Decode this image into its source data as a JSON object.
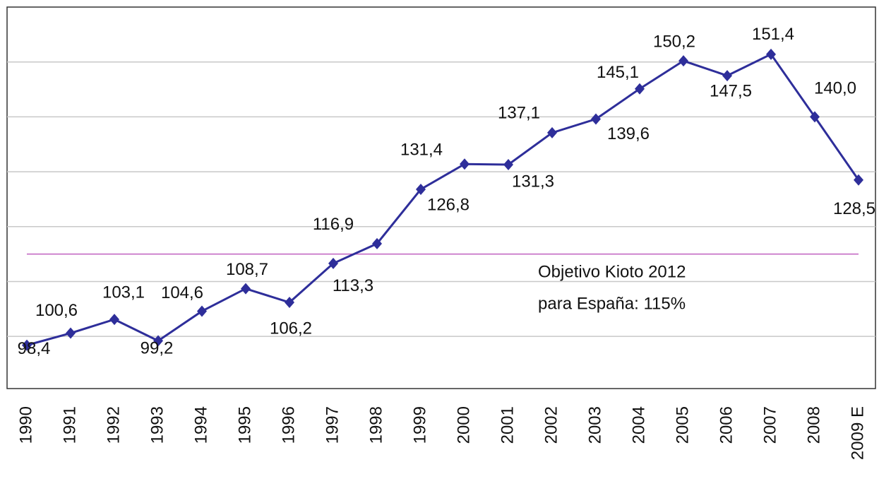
{
  "chart_data": {
    "type": "line",
    "categories": [
      "1990",
      "1991",
      "1992",
      "1993",
      "1994",
      "1995",
      "1996",
      "1997",
      "1998",
      "1999",
      "2000",
      "2001",
      "2002",
      "2003",
      "2004",
      "2005",
      "2006",
      "2007",
      "2008",
      "2009 E"
    ],
    "series": [
      {
        "color": "#2e2e9a",
        "values": [
          98.4,
          100.6,
          103.1,
          99.2,
          104.6,
          108.7,
          106.2,
          113.3,
          116.9,
          126.8,
          131.4,
          131.3,
          137.1,
          139.6,
          145.1,
          150.2,
          147.5,
          151.4,
          140.0,
          128.5
        ],
        "value_labels": [
          "98,4",
          "100,6",
          "103,1",
          "99,2",
          "104,6",
          "108,7",
          "106,2",
          "113,3",
          "116,9",
          "126,8",
          "131,4",
          "131,3",
          "137,1",
          "139,6",
          "145,1",
          "150,2",
          "147,5",
          "151,4",
          "140,0",
          "128,5"
        ]
      }
    ],
    "ylim": [
      90.5,
      160
    ],
    "yticks": [
      100,
      110,
      120,
      130,
      140,
      150
    ],
    "grid": true,
    "reference_line": {
      "value": 115,
      "color": "#c060c0"
    },
    "annotation": [
      "Objetivo Kioto 2012",
      "para España: 115%"
    ]
  }
}
